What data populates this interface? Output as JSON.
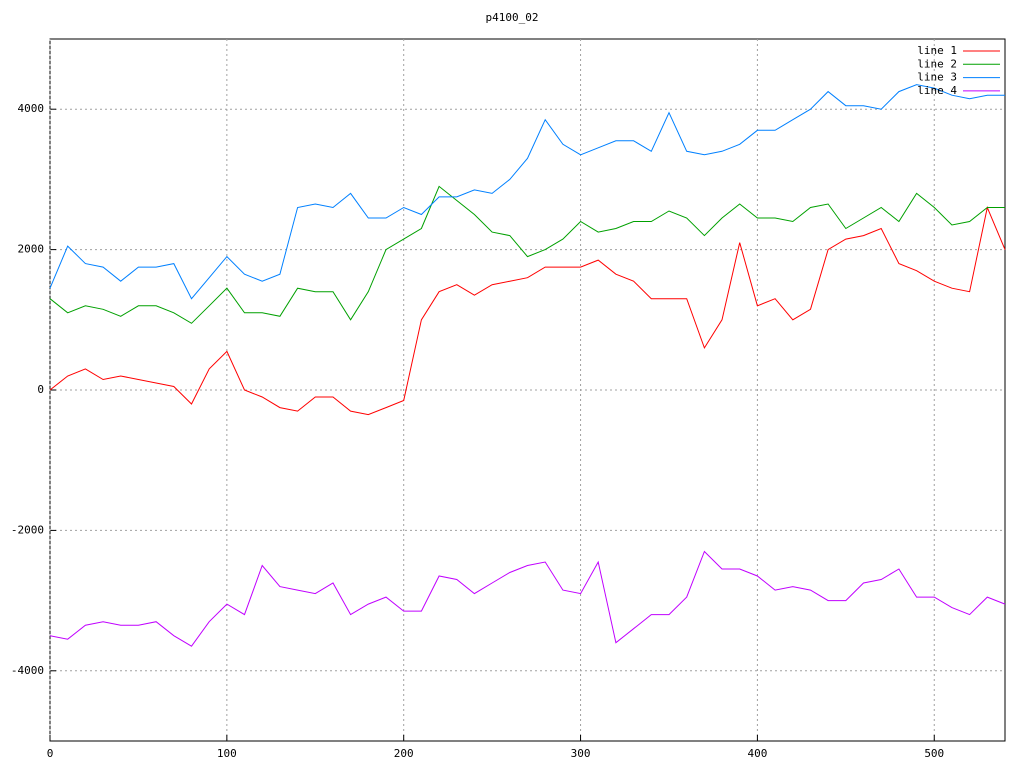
{
  "chart_data": {
    "type": "line",
    "title": "p4100_02",
    "x": [
      0,
      10,
      20,
      30,
      40,
      50,
      60,
      70,
      80,
      90,
      100,
      110,
      120,
      130,
      140,
      150,
      160,
      170,
      180,
      190,
      200,
      210,
      220,
      230,
      240,
      250,
      260,
      270,
      280,
      290,
      300,
      310,
      320,
      330,
      340,
      350,
      360,
      370,
      380,
      390,
      400,
      410,
      420,
      430,
      440,
      450,
      460,
      470,
      480,
      490,
      500,
      510,
      520,
      530,
      540
    ],
    "series": [
      {
        "name": "line 1",
        "color": "#ff0000",
        "values": [
          0,
          200,
          300,
          150,
          200,
          150,
          100,
          50,
          -200,
          300,
          550,
          0,
          -100,
          -250,
          -300,
          -100,
          -100,
          -300,
          -350,
          -250,
          -150,
          1000,
          1400,
          1500,
          1350,
          1500,
          1550,
          1600,
          1750,
          1750,
          1750,
          1850,
          1650,
          1550,
          1300,
          1300,
          1300,
          600,
          1000,
          2100,
          1200,
          1300,
          1000,
          1150,
          2000,
          2150,
          2200,
          2300,
          1800,
          1700,
          1550,
          1450,
          1400,
          2600,
          2000
        ]
      },
      {
        "name": "line 2",
        "color": "#00a000",
        "values": [
          1300,
          1100,
          1200,
          1150,
          1050,
          1200,
          1200,
          1100,
          950,
          1200,
          1450,
          1100,
          1100,
          1050,
          1450,
          1400,
          1400,
          1000,
          1400,
          2000,
          2150,
          2300,
          2900,
          2700,
          2500,
          2250,
          2200,
          1900,
          2000,
          2150,
          2400,
          2250,
          2300,
          2400,
          2400,
          2550,
          2450,
          2200,
          2450,
          2650,
          2450,
          2450,
          2400,
          2600,
          2650,
          2300,
          2450,
          2600,
          2400,
          2800,
          2600,
          2350,
          2400,
          2600,
          2600
        ]
      },
      {
        "name": "line 3",
        "color": "#0080ff",
        "values": [
          1450,
          2050,
          1800,
          1750,
          1550,
          1750,
          1750,
          1800,
          1300,
          1600,
          1900,
          1650,
          1550,
          1650,
          2600,
          2650,
          2600,
          2800,
          2450,
          2450,
          2600,
          2500,
          2750,
          2750,
          2850,
          2800,
          3000,
          3300,
          3850,
          3500,
          3350,
          3450,
          3550,
          3550,
          3400,
          3950,
          3400,
          3350,
          3400,
          3500,
          3700,
          3700,
          3850,
          4000,
          4250,
          4050,
          4050,
          4000,
          4250,
          4350,
          4300,
          4200,
          4150,
          4200,
          4200
        ]
      },
      {
        "name": "line 4",
        "color": "#c000ff",
        "values": [
          -3500,
          -3550,
          -3350,
          -3300,
          -3350,
          -3350,
          -3300,
          -3500,
          -3650,
          -3300,
          -3050,
          -3200,
          -2500,
          -2800,
          -2850,
          -2900,
          -2750,
          -3200,
          -3050,
          -2950,
          -3150,
          -3150,
          -2650,
          -2700,
          -2900,
          -2750,
          -2600,
          -2500,
          -2450,
          -2850,
          -2900,
          -2450,
          -3600,
          -3400,
          -3200,
          -3200,
          -2950,
          -2300,
          -2550,
          -2550,
          -2650,
          -2850,
          -2800,
          -2850,
          -3000,
          -3000,
          -2750,
          -2700,
          -2550,
          -2950,
          -2950,
          -3100,
          -3200,
          -2950,
          -3050
        ]
      }
    ],
    "xlim": [
      0,
      540
    ],
    "ylim": [
      -5000,
      5000
    ],
    "xticks": [
      0,
      100,
      200,
      300,
      400,
      500
    ],
    "yticks": [
      -4000,
      -2000,
      0,
      2000,
      4000
    ],
    "grid": true,
    "legend": "top-right"
  }
}
